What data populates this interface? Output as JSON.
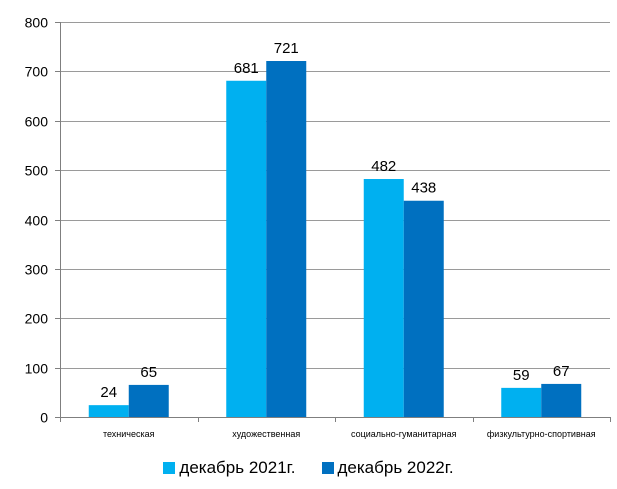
{
  "chart_data": {
    "type": "bar",
    "categories": [
      "техническая",
      "художественная",
      "социально-гуманитарная",
      "физкультурно-спортивная"
    ],
    "series": [
      {
        "name": "декабрь 2021г.",
        "values": [
          24,
          681,
          482,
          59
        ],
        "color": "#00B0F0"
      },
      {
        "name": "декабрь 2022г.",
        "values": [
          65,
          721,
          438,
          67
        ],
        "color": "#0070C0"
      }
    ],
    "ylim": [
      0,
      800
    ],
    "yticks": [
      0,
      100,
      200,
      300,
      400,
      500,
      600,
      700,
      800
    ],
    "grid": true,
    "legend_position": "bottom",
    "data_labels": true
  }
}
